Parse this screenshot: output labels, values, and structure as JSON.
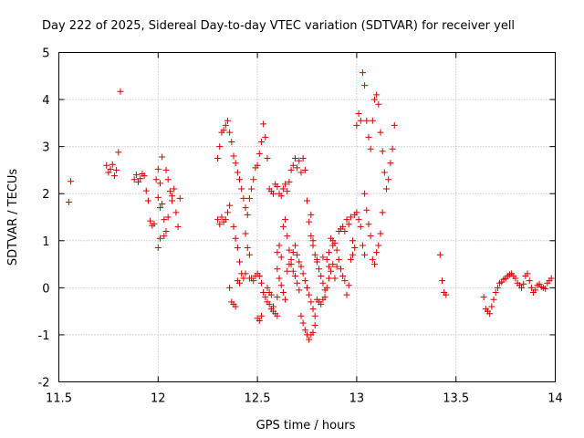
{
  "chart_data": {
    "type": "scatter",
    "title": "Day 222 of 2025, Sidereal Day-to-day VTEC variation (SDTVAR) for receiver yell",
    "xlabel": "GPS time / hours",
    "ylabel": "SDTVAR / TECUs",
    "xlim": [
      11.5,
      14
    ],
    "ylim": [
      -2,
      5
    ],
    "xticks": [
      "11.5",
      "12",
      "12.5",
      "13",
      "13.5",
      "14"
    ],
    "xtick_values": [
      11.5,
      12,
      12.5,
      13,
      13.5,
      14
    ],
    "yticks": [
      "-2",
      "-1",
      "0",
      "1",
      "2",
      "3",
      "4",
      "5"
    ],
    "ytick_values": [
      -2,
      -1,
      0,
      1,
      2,
      3,
      4,
      5
    ],
    "grid": true,
    "marker": "+",
    "marker_color": "#d40000",
    "series": [
      {
        "name": "SDTVAR",
        "points": [
          [
            11.55,
            1.82
          ],
          [
            11.56,
            2.26
          ],
          [
            11.74,
            2.6
          ],
          [
            11.75,
            2.45
          ],
          [
            11.76,
            2.52
          ],
          [
            11.77,
            2.62
          ],
          [
            11.78,
            2.38
          ],
          [
            11.79,
            2.5
          ],
          [
            11.8,
            2.88
          ],
          [
            11.81,
            4.17
          ],
          [
            11.88,
            2.3
          ],
          [
            11.89,
            2.4
          ],
          [
            11.9,
            2.25
          ],
          [
            11.91,
            2.32
          ],
          [
            11.92,
            2.42
          ],
          [
            11.93,
            2.38
          ],
          [
            11.94,
            2.06
          ],
          [
            11.95,
            1.85
          ],
          [
            11.96,
            1.42
          ],
          [
            11.97,
            1.32
          ],
          [
            11.98,
            1.36
          ],
          [
            11.99,
            2.3
          ],
          [
            12.0,
            2.52
          ],
          [
            12.01,
            2.22
          ],
          [
            12.0,
            1.92
          ],
          [
            12.01,
            1.7
          ],
          [
            12.02,
            1.78
          ],
          [
            12.03,
            1.45
          ],
          [
            12.04,
            1.2
          ],
          [
            12.05,
            1.5
          ],
          [
            12.01,
            1.05
          ],
          [
            12.0,
            0.85
          ],
          [
            12.02,
            2.78
          ],
          [
            12.04,
            2.5
          ],
          [
            12.05,
            2.3
          ],
          [
            12.06,
            2.05
          ],
          [
            12.07,
            1.85
          ],
          [
            12.08,
            2.1
          ],
          [
            12.09,
            1.6
          ],
          [
            12.1,
            1.3
          ],
          [
            12.07,
            1.95
          ],
          [
            12.03,
            1.1
          ],
          [
            12.11,
            1.9
          ],
          [
            12.3,
            2.75
          ],
          [
            12.31,
            3.0
          ],
          [
            12.32,
            3.3
          ],
          [
            12.33,
            3.35
          ],
          [
            12.34,
            3.45
          ],
          [
            12.35,
            3.55
          ],
          [
            12.36,
            3.3
          ],
          [
            12.37,
            3.1
          ],
          [
            12.38,
            2.8
          ],
          [
            12.39,
            2.65
          ],
          [
            12.4,
            2.45
          ],
          [
            12.41,
            2.3
          ],
          [
            12.42,
            2.1
          ],
          [
            12.43,
            1.9
          ],
          [
            12.44,
            1.7
          ],
          [
            12.45,
            1.55
          ],
          [
            12.46,
            1.9
          ],
          [
            12.47,
            2.1
          ],
          [
            12.48,
            2.3
          ],
          [
            12.49,
            2.55
          ],
          [
            12.5,
            2.6
          ],
          [
            12.51,
            2.85
          ],
          [
            12.52,
            3.1
          ],
          [
            12.53,
            3.48
          ],
          [
            12.54,
            3.2
          ],
          [
            12.55,
            2.75
          ],
          [
            12.56,
            2.1
          ],
          [
            12.57,
            2.05
          ],
          [
            12.58,
            2.0
          ],
          [
            12.59,
            2.2
          ],
          [
            12.3,
            1.45
          ],
          [
            12.31,
            1.35
          ],
          [
            12.32,
            1.5
          ],
          [
            12.33,
            1.4
          ],
          [
            12.34,
            1.45
          ],
          [
            12.35,
            1.6
          ],
          [
            12.36,
            1.75
          ],
          [
            12.38,
            1.3
          ],
          [
            12.39,
            1.05
          ],
          [
            12.4,
            0.85
          ],
          [
            12.41,
            0.55
          ],
          [
            12.42,
            0.3
          ],
          [
            12.43,
            0.2
          ],
          [
            12.44,
            1.15
          ],
          [
            12.45,
            0.85
          ],
          [
            12.46,
            0.7
          ],
          [
            12.47,
            0.2
          ],
          [
            12.48,
            0.15
          ],
          [
            12.49,
            0.25
          ],
          [
            12.5,
            0.3
          ],
          [
            12.51,
            0.25
          ],
          [
            12.52,
            0.1
          ],
          [
            12.53,
            -0.1
          ],
          [
            12.54,
            -0.2
          ],
          [
            12.55,
            -0.3
          ],
          [
            12.56,
            -0.35
          ],
          [
            12.57,
            -0.45
          ],
          [
            12.58,
            -0.5
          ],
          [
            12.59,
            -0.55
          ],
          [
            12.6,
            -0.6
          ],
          [
            12.36,
            0.0
          ],
          [
            12.37,
            -0.3
          ],
          [
            12.38,
            -0.35
          ],
          [
            12.39,
            -0.4
          ],
          [
            12.4,
            0.15
          ],
          [
            12.41,
            0.1
          ],
          [
            12.44,
            0.3
          ],
          [
            12.46,
            0.2
          ],
          [
            12.5,
            -0.65
          ],
          [
            12.51,
            -0.7
          ],
          [
            12.52,
            -0.6
          ],
          [
            12.55,
            0.0
          ],
          [
            12.56,
            -0.1
          ],
          [
            12.57,
            -0.15
          ],
          [
            12.58,
            -0.4
          ],
          [
            12.6,
            -0.2
          ],
          [
            12.6,
            2.15
          ],
          [
            12.61,
            2.0
          ],
          [
            12.62,
            1.95
          ],
          [
            12.63,
            2.1
          ],
          [
            12.64,
            2.2
          ],
          [
            12.65,
            2.05
          ],
          [
            12.66,
            2.25
          ],
          [
            12.67,
            2.5
          ],
          [
            12.68,
            2.6
          ],
          [
            12.69,
            2.75
          ],
          [
            12.7,
            2.55
          ],
          [
            12.71,
            2.7
          ],
          [
            12.72,
            2.45
          ],
          [
            12.73,
            2.75
          ],
          [
            12.74,
            2.5
          ],
          [
            12.6,
            0.75
          ],
          [
            12.61,
            0.9
          ],
          [
            12.62,
            0.65
          ],
          [
            12.63,
            1.3
          ],
          [
            12.64,
            1.45
          ],
          [
            12.65,
            1.1
          ],
          [
            12.66,
            0.8
          ],
          [
            12.67,
            0.5
          ],
          [
            12.68,
            0.35
          ],
          [
            12.69,
            0.25
          ],
          [
            12.6,
            0.4
          ],
          [
            12.61,
            0.2
          ],
          [
            12.62,
            0.05
          ],
          [
            12.63,
            -0.1
          ],
          [
            12.64,
            -0.25
          ],
          [
            12.65,
            0.35
          ],
          [
            12.66,
            0.5
          ],
          [
            12.67,
            0.6
          ],
          [
            12.68,
            0.75
          ],
          [
            12.69,
            0.9
          ],
          [
            12.7,
            0.7
          ],
          [
            12.71,
            0.55
          ],
          [
            12.72,
            0.45
          ],
          [
            12.73,
            0.3
          ],
          [
            12.74,
            0.15
          ],
          [
            12.75,
            0.0
          ],
          [
            12.76,
            -0.15
          ],
          [
            12.77,
            -0.3
          ],
          [
            12.78,
            -0.45
          ],
          [
            12.79,
            -0.6
          ],
          [
            12.7,
            0.1
          ],
          [
            12.71,
            -0.05
          ],
          [
            12.72,
            -0.6
          ],
          [
            12.73,
            -0.75
          ],
          [
            12.74,
            -0.9
          ],
          [
            12.75,
            -1.0
          ],
          [
            12.76,
            -1.1
          ],
          [
            12.77,
            -1.0
          ],
          [
            12.78,
            -0.95
          ],
          [
            12.79,
            -0.8
          ],
          [
            12.75,
            1.85
          ],
          [
            12.76,
            1.4
          ],
          [
            12.77,
            1.1
          ],
          [
            12.78,
            0.9
          ],
          [
            12.79,
            0.7
          ],
          [
            12.8,
            0.55
          ],
          [
            12.81,
            0.4
          ],
          [
            12.82,
            0.25
          ],
          [
            12.83,
            0.1
          ],
          [
            12.84,
            -0.05
          ],
          [
            12.8,
            -0.25
          ],
          [
            12.81,
            -0.3
          ],
          [
            12.82,
            -0.35
          ],
          [
            12.83,
            -0.25
          ],
          [
            12.84,
            -0.2
          ],
          [
            12.85,
            0.0
          ],
          [
            12.86,
            0.2
          ],
          [
            12.87,
            0.35
          ],
          [
            12.88,
            0.5
          ],
          [
            12.89,
            0.2
          ],
          [
            12.77,
            1.55
          ],
          [
            12.78,
            1.0
          ],
          [
            12.8,
            0.6
          ],
          [
            12.83,
            0.65
          ],
          [
            12.86,
            0.45
          ],
          [
            12.88,
            0.9
          ],
          [
            12.85,
            0.6
          ],
          [
            12.86,
            0.75
          ],
          [
            12.87,
            1.05
          ],
          [
            12.88,
            1.0
          ],
          [
            12.89,
            0.95
          ],
          [
            12.9,
            0.8
          ],
          [
            12.91,
            0.6
          ],
          [
            12.92,
            0.4
          ],
          [
            12.93,
            0.25
          ],
          [
            12.94,
            0.15
          ],
          [
            12.9,
            0.45
          ],
          [
            12.91,
            1.2
          ],
          [
            12.92,
            1.25
          ],
          [
            12.93,
            1.3
          ],
          [
            12.94,
            1.2
          ],
          [
            12.95,
            1.45
          ],
          [
            12.96,
            1.35
          ],
          [
            12.97,
            1.5
          ],
          [
            12.98,
            1.0
          ],
          [
            12.99,
            0.85
          ],
          [
            12.95,
            -0.15
          ],
          [
            12.96,
            0.05
          ],
          [
            12.97,
            0.6
          ],
          [
            12.98,
            0.7
          ],
          [
            12.99,
            1.55
          ],
          [
            13.0,
            1.6
          ],
          [
            13.01,
            1.45
          ],
          [
            13.02,
            1.3
          ],
          [
            13.03,
            0.9
          ],
          [
            13.04,
            0.7
          ],
          [
            13.0,
            3.45
          ],
          [
            13.01,
            3.7
          ],
          [
            13.02,
            3.55
          ],
          [
            13.03,
            4.57
          ],
          [
            13.04,
            4.3
          ],
          [
            13.05,
            3.55
          ],
          [
            13.06,
            3.2
          ],
          [
            13.07,
            2.95
          ],
          [
            13.08,
            3.55
          ],
          [
            13.09,
            4.0
          ],
          [
            13.1,
            4.1
          ],
          [
            13.11,
            3.9
          ],
          [
            13.12,
            3.3
          ],
          [
            13.13,
            2.9
          ],
          [
            13.14,
            2.45
          ],
          [
            13.15,
            2.1
          ],
          [
            13.16,
            2.3
          ],
          [
            13.17,
            2.65
          ],
          [
            13.18,
            2.95
          ],
          [
            13.19,
            3.45
          ],
          [
            13.04,
            2.0
          ],
          [
            13.05,
            1.65
          ],
          [
            13.06,
            1.35
          ],
          [
            13.07,
            1.1
          ],
          [
            13.08,
            0.6
          ],
          [
            13.09,
            0.5
          ],
          [
            13.1,
            0.75
          ],
          [
            13.11,
            0.9
          ],
          [
            13.12,
            1.15
          ],
          [
            13.13,
            1.6
          ],
          [
            13.42,
            0.7
          ],
          [
            13.43,
            0.15
          ],
          [
            13.44,
            -0.1
          ],
          [
            13.45,
            -0.15
          ],
          [
            13.64,
            -0.2
          ],
          [
            13.65,
            -0.45
          ],
          [
            13.66,
            -0.5
          ],
          [
            13.67,
            -0.55
          ],
          [
            13.68,
            -0.4
          ],
          [
            13.69,
            -0.25
          ],
          [
            13.7,
            -0.1
          ],
          [
            13.71,
            0.0
          ],
          [
            13.72,
            0.1
          ],
          [
            13.73,
            0.12
          ],
          [
            13.74,
            0.18
          ],
          [
            13.75,
            0.2
          ],
          [
            13.76,
            0.25
          ],
          [
            13.77,
            0.28
          ],
          [
            13.78,
            0.3
          ],
          [
            13.79,
            0.25
          ],
          [
            13.8,
            0.2
          ],
          [
            13.81,
            0.1
          ],
          [
            13.82,
            0.05
          ],
          [
            13.83,
            0.0
          ],
          [
            13.84,
            0.08
          ],
          [
            13.85,
            0.25
          ],
          [
            13.86,
            0.3
          ],
          [
            13.87,
            0.15
          ],
          [
            13.88,
            0.0
          ],
          [
            13.89,
            -0.1
          ],
          [
            13.9,
            -0.05
          ],
          [
            13.91,
            0.05
          ],
          [
            13.92,
            0.08
          ],
          [
            13.93,
            0.02
          ],
          [
            13.94,
            0.0
          ],
          [
            13.95,
            -0.02
          ],
          [
            13.96,
            0.1
          ],
          [
            13.97,
            0.15
          ],
          [
            13.98,
            0.2
          ]
        ]
      }
    ]
  }
}
